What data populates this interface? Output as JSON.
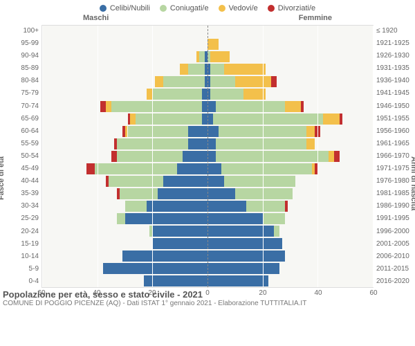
{
  "legend": [
    {
      "label": "Celibi/Nubili",
      "color": "#3a6ea5"
    },
    {
      "label": "Coniugati/e",
      "color": "#b7d6a2"
    },
    {
      "label": "Vedovi/e",
      "color": "#f3c04b"
    },
    {
      "label": "Divorziati/e",
      "color": "#c22f2f"
    }
  ],
  "headers": {
    "male": "Maschi",
    "female": "Femmine"
  },
  "axis_left_title": "Fasce di età",
  "axis_right_title": "Anni di nascita",
  "x_axis": {
    "max": 60,
    "ticks": [
      60,
      40,
      20,
      0,
      20,
      40,
      60
    ]
  },
  "footer_title": "Popolazione per età, sesso e stato civile - 2021",
  "footer_sub": "COMUNE DI POGGIO PICENZE (AQ) - Dati ISTAT 1° gennaio 2021 - Elaborazione TUTTITALIA.IT",
  "colors": {
    "celibi": "#3a6ea5",
    "coniugati": "#b7d6a2",
    "vedovi": "#f3c04b",
    "divorziati": "#c22f2f",
    "plot_bg": "#f7f7f4",
    "grid": "#ffffff"
  },
  "rows": [
    {
      "age": "100+",
      "birth": "≤ 1920",
      "m": {
        "c": 0,
        "m": 0,
        "w": 0,
        "d": 0
      },
      "f": {
        "c": 0,
        "m": 0,
        "w": 0,
        "d": 0
      }
    },
    {
      "age": "95-99",
      "birth": "1921-1925",
      "m": {
        "c": 0,
        "m": 0,
        "w": 0,
        "d": 0
      },
      "f": {
        "c": 0,
        "m": 0,
        "w": 4,
        "d": 0
      }
    },
    {
      "age": "90-94",
      "birth": "1926-1930",
      "m": {
        "c": 1,
        "m": 2,
        "w": 1,
        "d": 0
      },
      "f": {
        "c": 0,
        "m": 1,
        "w": 7,
        "d": 0
      }
    },
    {
      "age": "85-89",
      "birth": "1931-1935",
      "m": {
        "c": 1,
        "m": 6,
        "w": 3,
        "d": 0
      },
      "f": {
        "c": 1,
        "m": 5,
        "w": 15,
        "d": 0
      }
    },
    {
      "age": "80-84",
      "birth": "1936-1940",
      "m": {
        "c": 1,
        "m": 15,
        "w": 3,
        "d": 0
      },
      "f": {
        "c": 1,
        "m": 9,
        "w": 13,
        "d": 2
      }
    },
    {
      "age": "75-79",
      "birth": "1941-1945",
      "m": {
        "c": 2,
        "m": 18,
        "w": 2,
        "d": 0
      },
      "f": {
        "c": 1,
        "m": 12,
        "w": 8,
        "d": 0
      }
    },
    {
      "age": "70-74",
      "birth": "1946-1950",
      "m": {
        "c": 2,
        "m": 33,
        "w": 2,
        "d": 2
      },
      "f": {
        "c": 3,
        "m": 25,
        "w": 6,
        "d": 1
      }
    },
    {
      "age": "65-69",
      "birth": "1951-1955",
      "m": {
        "c": 2,
        "m": 24,
        "w": 2,
        "d": 1
      },
      "f": {
        "c": 2,
        "m": 40,
        "w": 6,
        "d": 1
      }
    },
    {
      "age": "60-64",
      "birth": "1956-1960",
      "m": {
        "c": 7,
        "m": 22,
        "w": 1,
        "d": 1
      },
      "f": {
        "c": 4,
        "m": 32,
        "w": 3,
        "d": 2
      }
    },
    {
      "age": "55-59",
      "birth": "1961-1965",
      "m": {
        "c": 7,
        "m": 26,
        "w": 0,
        "d": 1
      },
      "f": {
        "c": 3,
        "m": 33,
        "w": 3,
        "d": 0
      }
    },
    {
      "age": "50-54",
      "birth": "1966-1970",
      "m": {
        "c": 9,
        "m": 24,
        "w": 0,
        "d": 2
      },
      "f": {
        "c": 3,
        "m": 41,
        "w": 2,
        "d": 2
      }
    },
    {
      "age": "45-49",
      "birth": "1971-1975",
      "m": {
        "c": 11,
        "m": 30,
        "w": 0,
        "d": 3
      },
      "f": {
        "c": 5,
        "m": 33,
        "w": 1,
        "d": 1
      }
    },
    {
      "age": "40-44",
      "birth": "1976-1980",
      "m": {
        "c": 16,
        "m": 20,
        "w": 0,
        "d": 1
      },
      "f": {
        "c": 6,
        "m": 26,
        "w": 0,
        "d": 0
      }
    },
    {
      "age": "35-39",
      "birth": "1981-1985",
      "m": {
        "c": 18,
        "m": 14,
        "w": 0,
        "d": 1
      },
      "f": {
        "c": 10,
        "m": 21,
        "w": 0,
        "d": 0
      }
    },
    {
      "age": "30-34",
      "birth": "1986-1990",
      "m": {
        "c": 22,
        "m": 8,
        "w": 0,
        "d": 0
      },
      "f": {
        "c": 14,
        "m": 14,
        "w": 0,
        "d": 1
      }
    },
    {
      "age": "25-29",
      "birth": "1991-1995",
      "m": {
        "c": 30,
        "m": 3,
        "w": 0,
        "d": 0
      },
      "f": {
        "c": 20,
        "m": 8,
        "w": 0,
        "d": 0
      }
    },
    {
      "age": "20-24",
      "birth": "1996-2000",
      "m": {
        "c": 20,
        "m": 1,
        "w": 0,
        "d": 0
      },
      "f": {
        "c": 24,
        "m": 2,
        "w": 0,
        "d": 0
      }
    },
    {
      "age": "15-19",
      "birth": "2001-2005",
      "m": {
        "c": 20,
        "m": 0,
        "w": 0,
        "d": 0
      },
      "f": {
        "c": 27,
        "m": 0,
        "w": 0,
        "d": 0
      }
    },
    {
      "age": "10-14",
      "birth": "2006-2010",
      "m": {
        "c": 31,
        "m": 0,
        "w": 0,
        "d": 0
      },
      "f": {
        "c": 28,
        "m": 0,
        "w": 0,
        "d": 0
      }
    },
    {
      "age": "5-9",
      "birth": "2011-2015",
      "m": {
        "c": 38,
        "m": 0,
        "w": 0,
        "d": 0
      },
      "f": {
        "c": 26,
        "m": 0,
        "w": 0,
        "d": 0
      }
    },
    {
      "age": "0-4",
      "birth": "2016-2020",
      "m": {
        "c": 23,
        "m": 0,
        "w": 0,
        "d": 0
      },
      "f": {
        "c": 22,
        "m": 0,
        "w": 0,
        "d": 0
      }
    }
  ]
}
